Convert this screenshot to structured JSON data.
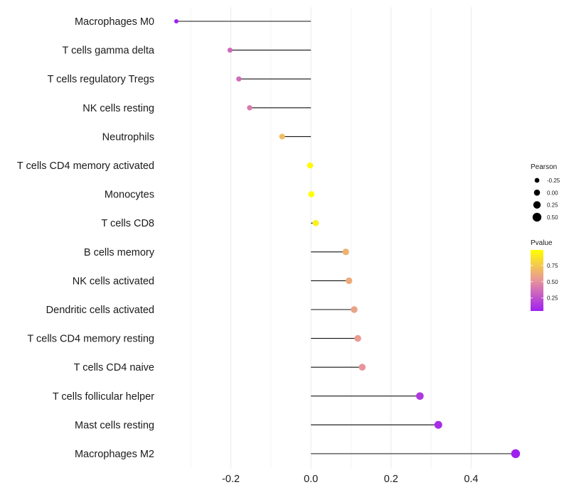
{
  "chart_data": {
    "type": "lollipop",
    "title": "",
    "xlabel": "",
    "ylabel": "",
    "xlim": [
      -0.375,
      0.52
    ],
    "xticks": [
      -0.2,
      0.0,
      0.2,
      0.4
    ],
    "xtick_labels": [
      "-0.2",
      "0.0",
      "0.2",
      "0.4"
    ],
    "grid": true,
    "legend_position": "right",
    "points": [
      {
        "label": "Macrophages M0",
        "value": -0.336,
        "pvalue": 0.02
      },
      {
        "label": "T cells gamma delta",
        "value": -0.202,
        "pvalue": 0.35
      },
      {
        "label": "T cells regulatory  Tregs",
        "value": -0.18,
        "pvalue": 0.35
      },
      {
        "label": "NK cells resting",
        "value": -0.153,
        "pvalue": 0.42
      },
      {
        "label": "Neutrophils",
        "value": -0.072,
        "pvalue": 0.7
      },
      {
        "label": "T cells CD4 memory activated",
        "value": -0.002,
        "pvalue": 0.97
      },
      {
        "label": "Monocytes",
        "value": 0.001,
        "pvalue": 0.99
      },
      {
        "label": "T cells CD8",
        "value": 0.012,
        "pvalue": 0.93
      },
      {
        "label": "B cells memory",
        "value": 0.087,
        "pvalue": 0.65
      },
      {
        "label": "NK cells activated",
        "value": 0.095,
        "pvalue": 0.62
      },
      {
        "label": "Dendritic cells activated",
        "value": 0.108,
        "pvalue": 0.58
      },
      {
        "label": "T cells CD4 memory resting",
        "value": 0.117,
        "pvalue": 0.55
      },
      {
        "label": "T cells CD4 naive",
        "value": 0.128,
        "pvalue": 0.52
      },
      {
        "label": "T cells follicular helper",
        "value": 0.272,
        "pvalue": 0.15
      },
      {
        "label": "Mast cells resting",
        "value": 0.318,
        "pvalue": 0.1
      },
      {
        "label": "Macrophages M2",
        "value": 0.511,
        "pvalue": 0.01
      }
    ],
    "legend_size": {
      "title": "Pearson",
      "entries": [
        {
          "label": "-0.25",
          "value": -0.25
        },
        {
          "label": "0.00",
          "value": 0.0
        },
        {
          "label": "0.25",
          "value": 0.25
        },
        {
          "label": "0.50",
          "value": 0.5
        }
      ]
    },
    "legend_color": {
      "title": "Pvalue",
      "range": [
        0.05,
        0.99
      ],
      "ticks": [
        {
          "label": "0.75",
          "value": 0.75
        },
        {
          "label": "0.50",
          "value": 0.5
        },
        {
          "label": "0.25",
          "value": 0.25
        }
      ],
      "low_color": "#a020f0",
      "mid_color": "#e8949b",
      "high_color": "#ffff00"
    }
  }
}
